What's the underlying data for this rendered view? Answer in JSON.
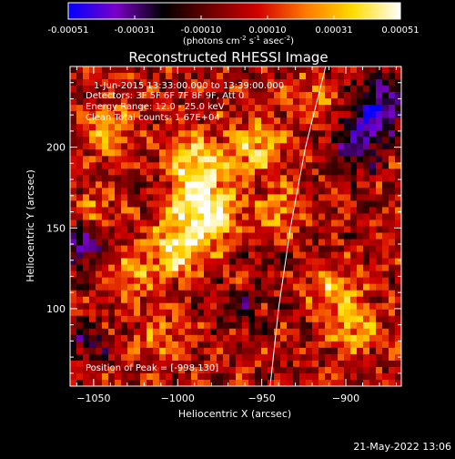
{
  "colorbar": {
    "ticks": [
      "-0.00051",
      "-0.00031",
      "-0.00010",
      "0.00010",
      "0.00031",
      "0.00051"
    ],
    "units_prefix": "(photons cm",
    "units_exp1": "-2",
    "units_mid1": " s",
    "units_exp2": "-1",
    "units_mid2": " asec",
    "units_exp3": "-2",
    "units_suffix": ")"
  },
  "title": "Reconstructed RHESSI Image",
  "annotations": {
    "time_range": "1-Jun-2015 13:33:00.000 to 13:39:00.000",
    "detectors": "Detectors: 3F 5F 6F 7F 8F 9F, Att 0",
    "energy": "Energy Range: 12.0 - 25.0 keV",
    "method": "Clean    Total counts: 1.67E+04",
    "peak": "Position of Peak = [-998,130]"
  },
  "timestamp": "21-May-2022 13:06",
  "chart_data": {
    "type": "heatmap",
    "xlabel": "Heliocentric X (arcsec)",
    "ylabel": "Heliocentric Y (arcsec)",
    "xlim": [
      -1064,
      -867
    ],
    "ylim": [
      52,
      250
    ],
    "xticks": [
      -1050,
      -1000,
      -950,
      -900
    ],
    "yticks": [
      100,
      150,
      200
    ],
    "colorbar_range": [
      -0.00051,
      0.00051
    ],
    "colormap": [
      "#0000ff",
      "#7a00c8",
      "#000000",
      "#6e0000",
      "#d20000",
      "#ff7800",
      "#ffdc00",
      "#ffffff"
    ],
    "peak_position": [
      -998,
      130
    ],
    "limb": [
      [
        -945,
        52
      ],
      [
        -940,
        100
      ],
      [
        -933,
        150
      ],
      [
        -924,
        200
      ],
      [
        -912,
        250
      ]
    ],
    "hotspots": [
      {
        "x": -985,
        "y": 160,
        "sigma": 14,
        "amp": 0.00048
      },
      {
        "x": -1000,
        "y": 135,
        "sigma": 12,
        "amp": 0.00038
      },
      {
        "x": -990,
        "y": 190,
        "sigma": 13,
        "amp": 0.00035
      },
      {
        "x": -1040,
        "y": 210,
        "sigma": 10,
        "amp": 0.0003
      },
      {
        "x": -1030,
        "y": 120,
        "sigma": 10,
        "amp": 0.00028
      },
      {
        "x": -955,
        "y": 200,
        "sigma": 12,
        "amp": 0.0003
      },
      {
        "x": -940,
        "y": 160,
        "sigma": 10,
        "amp": 0.00025
      },
      {
        "x": -905,
        "y": 110,
        "sigma": 11,
        "amp": 0.0003
      },
      {
        "x": -895,
        "y": 85,
        "sigma": 10,
        "amp": 0.00028
      },
      {
        "x": -1010,
        "y": 80,
        "sigma": 11,
        "amp": 0.0002
      },
      {
        "x": -920,
        "y": 230,
        "sigma": 10,
        "amp": 0.00022
      },
      {
        "x": -1050,
        "y": 160,
        "sigma": 9,
        "amp": 0.0002
      }
    ],
    "coldspots": [
      {
        "x": -880,
        "y": 225,
        "sigma": 12,
        "amp": -0.00045
      },
      {
        "x": -895,
        "y": 200,
        "sigma": 10,
        "amp": -0.00035
      },
      {
        "x": -1055,
        "y": 140,
        "sigma": 10,
        "amp": -0.0003
      },
      {
        "x": -1055,
        "y": 80,
        "sigma": 9,
        "amp": -0.0002
      },
      {
        "x": -1015,
        "y": 175,
        "sigma": 6,
        "amp": -0.00015
      },
      {
        "x": -960,
        "y": 100,
        "sigma": 8,
        "amp": -0.00018
      },
      {
        "x": -950,
        "y": 130,
        "sigma": 7,
        "amp": -0.00012
      }
    ]
  }
}
